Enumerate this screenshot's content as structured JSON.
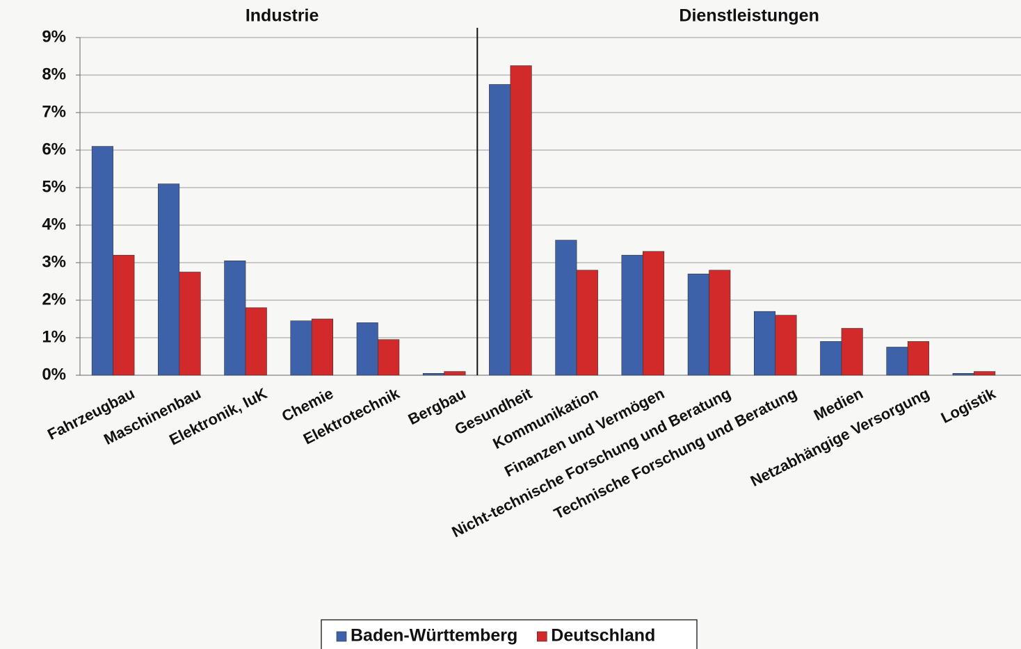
{
  "chart_data": {
    "type": "bar",
    "section_titles": [
      "Industrie",
      "Dienstleistungen"
    ],
    "categories": [
      "Fahrzeugbau",
      "Maschinenbau",
      "Elektronik, IuK",
      "Chemie",
      "Elektrotechnik",
      "Bergbau",
      "Gesundheit",
      "Kommunikation",
      "Finanzen und Vermögen",
      "Nicht-technische Forschung und Beratung",
      "Technische Forschung und Beratung",
      "Medien",
      "Netzabhängige Versorgung",
      "Logistik"
    ],
    "series": [
      {
        "name": "Baden-Württemberg",
        "color": "#3d62aa",
        "values": [
          6.1,
          5.1,
          3.05,
          1.45,
          1.4,
          0.05,
          7.75,
          3.6,
          3.2,
          2.7,
          1.7,
          0.9,
          0.75,
          0.05
        ]
      },
      {
        "name": "Deutschland",
        "color": "#d22a2a",
        "values": [
          3.2,
          2.75,
          1.8,
          1.5,
          0.95,
          0.1,
          8.25,
          2.8,
          3.3,
          2.8,
          1.6,
          1.25,
          0.9,
          0.1
        ]
      }
    ],
    "ylim": [
      0,
      9
    ],
    "yticks": [
      {
        "value": 0,
        "label": "0%"
      },
      {
        "value": 1,
        "label": "1%"
      },
      {
        "value": 2,
        "label": "2%"
      },
      {
        "value": 3,
        "label": "3%"
      },
      {
        "value": 4,
        "label": "4%"
      },
      {
        "value": 5,
        "label": "5%"
      },
      {
        "value": 6,
        "label": "6%"
      },
      {
        "value": 7,
        "label": "7%"
      },
      {
        "value": 8,
        "label": "8%"
      },
      {
        "value": 9,
        "label": "9%"
      }
    ],
    "grid": true,
    "legend": "bottom"
  }
}
